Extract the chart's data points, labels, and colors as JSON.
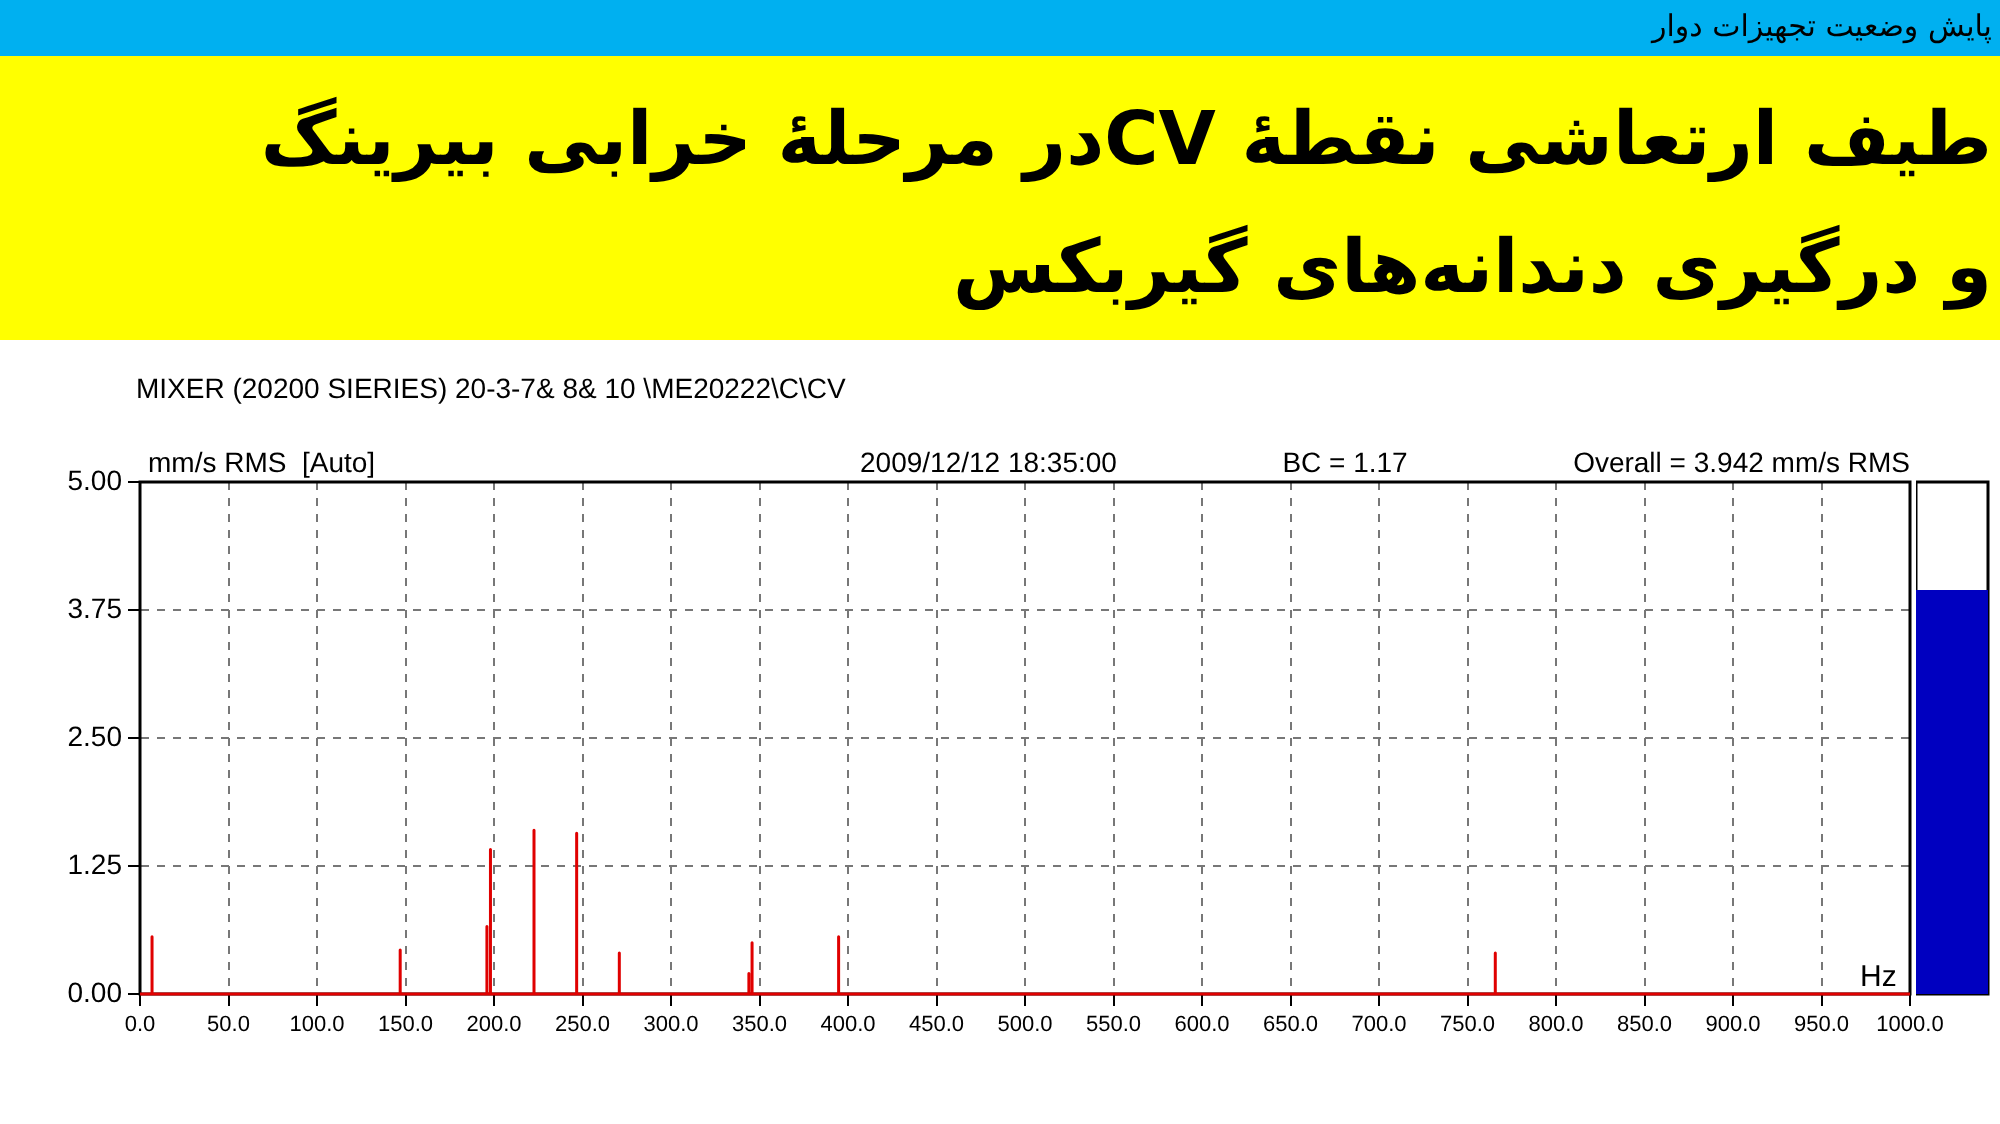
{
  "chart_data": [
    {
      "type": "line",
      "title": "طیف ارتعاشی نقطهٔ  CVدر مرحلهٔ خرابی بیرینگ و درگیری دندانه‌های گیربکس",
      "subtitle": "MIXER (20200 SIERIES) 20-3-7& 8& 10 \\ME20222\\C\\CV",
      "ylabel": "mm/s RMS  [Auto]",
      "xlabel": "Hz",
      "annotations": [
        "پایش وضعیت تجهیزات دوار",
        "2009/12/12 18:35:00",
        "BC = 1.17",
        "Overall = 3.942 mm/s RMS"
      ],
      "series": [
        {
          "color": "#e00000",
          "x": [
            0,
            6.8,
            6.8,
            6.8,
            147,
            147,
            147,
            196,
            196,
            196,
            198,
            198,
            198,
            222.6,
            222.6,
            222.6,
            246.7,
            246.7,
            246.7,
            270.8,
            270.8,
            270.8,
            344,
            344,
            344,
            345.8,
            345.8,
            345.8,
            394.7,
            394.7,
            394.7,
            765.7,
            765.7,
            765.7,
            1000
          ],
          "values": [
            0,
            0,
            0.56,
            0,
            0,
            0.43,
            0,
            0,
            0.66,
            0,
            0,
            1.41,
            0,
            0,
            1.6,
            0,
            0,
            1.57,
            0,
            0,
            0.4,
            0,
            0,
            0.2,
            0,
            0,
            0.5,
            0,
            0,
            0.56,
            0,
            0,
            0.4,
            0,
            0
          ]
        }
      ],
      "xlim": [
        0,
        1000
      ],
      "xticks": [
        {
          "value": 0,
          "label": "0.0"
        },
        {
          "value": 50,
          "label": "50.0"
        },
        {
          "value": 100,
          "label": "100.0"
        },
        {
          "value": 150,
          "label": "150.0"
        },
        {
          "value": 200,
          "label": "200.0"
        },
        {
          "value": 250,
          "label": "250.0"
        },
        {
          "value": 300,
          "label": "300.0"
        },
        {
          "value": 350,
          "label": "350.0"
        },
        {
          "value": 400,
          "label": "400.0"
        },
        {
          "value": 450,
          "label": "450.0"
        },
        {
          "value": 500,
          "label": "500.0"
        },
        {
          "value": 550,
          "label": "550.0"
        },
        {
          "value": 600,
          "label": "600.0"
        },
        {
          "value": 650,
          "label": "650.0"
        },
        {
          "value": 700,
          "label": "700.0"
        },
        {
          "value": 750,
          "label": "750.0"
        },
        {
          "value": 800,
          "label": "800.0"
        },
        {
          "value": 850,
          "label": "850.0"
        },
        {
          "value": 900,
          "label": "900.0"
        },
        {
          "value": 950,
          "label": "950.0"
        },
        {
          "value": 1000,
          "label": "1000.0"
        }
      ],
      "ylim": [
        0,
        5
      ],
      "yticks": [
        {
          "value": 0,
          "label": "0.00"
        },
        {
          "value": 1.25,
          "label": "1.25"
        },
        {
          "value": 2.5,
          "label": "2.50"
        },
        {
          "value": 3.75,
          "label": "3.75"
        },
        {
          "value": 5,
          "label": "5.00"
        }
      ],
      "grid": true,
      "marker": "none",
      "legend": false
    },
    {
      "type": "bar",
      "categories": [
        null
      ],
      "values": [
        3.94
      ],
      "color": "#0000c0",
      "ylim": [
        0,
        5
      ],
      "tick_labels": false,
      "legend": false
    }
  ]
}
